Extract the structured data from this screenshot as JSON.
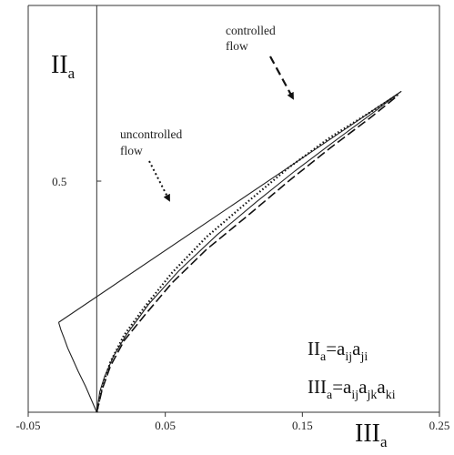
{
  "chart_data": {
    "type": "line",
    "xlim": [
      -0.05,
      0.25
    ],
    "ylim": [
      0,
      0.88
    ],
    "x_ticks": [
      {
        "value": -0.05,
        "label": "-0.05"
      },
      {
        "value": 0.05,
        "label": "0.05"
      },
      {
        "value": 0.15,
        "label": "0.15"
      },
      {
        "value": 0.25,
        "label": "0.25"
      }
    ],
    "y_ticks": [
      {
        "value": 0.5,
        "label": "0.5"
      }
    ],
    "xlabel": {
      "main": "III",
      "sub": "a"
    },
    "ylabel": {
      "main": "II",
      "sub": "a"
    },
    "grid": false,
    "formulas": [
      {
        "main": "II",
        "sub": "a",
        "rhs": [
          [
            "=a",
            "ij"
          ],
          [
            "a",
            "ji"
          ]
        ]
      },
      {
        "main": "III",
        "sub": "a",
        "rhs": [
          [
            "=a",
            "ij"
          ],
          [
            "a",
            "jk"
          ],
          [
            "a",
            "ki"
          ]
        ]
      }
    ],
    "annotations": [
      {
        "lines": [
          "controlled",
          "flow"
        ],
        "arrow_style": "dashed"
      },
      {
        "lines": [
          "uncontrolled",
          "flow"
        ],
        "arrow_style": "dotted"
      }
    ],
    "boundary": {
      "left_branch": [
        [
          0.0,
          0.0
        ],
        [
          -0.0081,
          0.0556
        ],
        [
          -0.0136,
          0.0889
        ],
        [
          -0.0178,
          0.1167
        ],
        [
          -0.0212,
          0.1389
        ],
        [
          -0.0239,
          0.1611
        ],
        [
          -0.0261,
          0.1778
        ],
        [
          -0.0278,
          0.1944
        ]
      ],
      "right_branch": [
        [
          0.0,
          0.0
        ],
        [
          0.0022,
          0.0444
        ],
        [
          0.0058,
          0.0778
        ],
        [
          0.0124,
          0.1222
        ],
        [
          0.0214,
          0.1667
        ],
        [
          0.0378,
          0.2333
        ],
        [
          0.0598,
          0.3056
        ],
        [
          0.0876,
          0.3833
        ],
        [
          0.1167,
          0.4556
        ],
        [
          0.1447,
          0.5222
        ],
        [
          0.1721,
          0.5833
        ],
        [
          0.2,
          0.6444
        ],
        [
          0.2222,
          0.6944
        ]
      ],
      "upper_line": [
        [
          -0.0278,
          0.1944
        ],
        [
          0.2222,
          0.6944
        ]
      ]
    },
    "series": [
      {
        "style": "dashed",
        "points": [
          [
            0.0,
            0.0
          ],
          [
            0.004,
            0.05
          ],
          [
            0.01,
            0.1
          ],
          [
            0.02,
            0.155
          ],
          [
            0.035,
            0.21
          ],
          [
            0.055,
            0.28
          ],
          [
            0.08,
            0.352
          ],
          [
            0.11,
            0.425
          ],
          [
            0.14,
            0.5
          ],
          [
            0.17,
            0.571
          ],
          [
            0.2,
            0.638
          ],
          [
            0.22,
            0.686
          ]
        ]
      },
      {
        "style": "dotted",
        "points": [
          [
            0.0,
            0.0
          ],
          [
            0.004,
            0.056
          ],
          [
            0.01,
            0.109
          ],
          [
            0.02,
            0.167
          ],
          [
            0.035,
            0.228
          ],
          [
            0.055,
            0.302
          ],
          [
            0.08,
            0.379
          ],
          [
            0.11,
            0.455
          ],
          [
            0.14,
            0.529
          ],
          [
            0.17,
            0.594
          ],
          [
            0.2,
            0.65
          ],
          [
            0.22,
            0.688
          ]
        ]
      }
    ]
  }
}
